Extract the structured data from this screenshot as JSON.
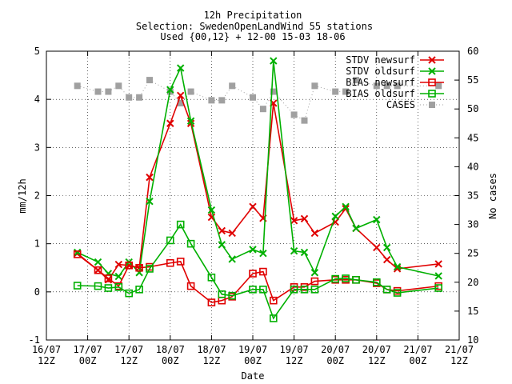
{
  "chart_data": {
    "type": "line",
    "title": "12h Precipitation",
    "subtitle": "Selection: SwedenOpenLandWind     55 stations",
    "subtitle2": "Used {00,12} + 12-00 15-03 18-06",
    "xlabel": "Date",
    "ylabel": "mm/12h",
    "y2label": "No cases",
    "xlim": [
      0,
      120
    ],
    "ylim": [
      -1,
      5
    ],
    "y2lim": [
      10,
      60
    ],
    "x_ticks": [
      {
        "x": 0,
        "label1": "16/07",
        "label2": "12Z"
      },
      {
        "x": 12,
        "label1": "17/07",
        "label2": "00Z"
      },
      {
        "x": 24,
        "label1": "17/07",
        "label2": "12Z"
      },
      {
        "x": 36,
        "label1": "18/07",
        "label2": "00Z"
      },
      {
        "x": 48,
        "label1": "18/07",
        "label2": "12Z"
      },
      {
        "x": 60,
        "label1": "19/07",
        "label2": "00Z"
      },
      {
        "x": 72,
        "label1": "19/07",
        "label2": "12Z"
      },
      {
        "x": 84,
        "label1": "20/07",
        "label2": "00Z"
      },
      {
        "x": 96,
        "label1": "20/07",
        "label2": "12Z"
      },
      {
        "x": 108,
        "label1": "21/07",
        "label2": "00Z"
      },
      {
        "x": 120,
        "label1": "21/07",
        "label2": "12Z"
      }
    ],
    "y_ticks": [
      -1,
      0,
      1,
      2,
      3,
      4,
      5
    ],
    "y2_ticks": [
      10,
      15,
      20,
      25,
      30,
      35,
      40,
      45,
      50,
      55,
      60
    ],
    "grid": true,
    "legend_position": "top-right",
    "series": [
      {
        "name": "STDV newsurf",
        "color": "#e00000",
        "marker": "cross",
        "axis": "y",
        "x": [
          9,
          15,
          18,
          21,
          24,
          27,
          30,
          36,
          39,
          42,
          48,
          51,
          54,
          60,
          63,
          66,
          72,
          75,
          78,
          84,
          87,
          90,
          96,
          99,
          102,
          114
        ],
        "y": [
          0.8,
          0.45,
          0.25,
          0.57,
          0.55,
          0.5,
          2.38,
          3.5,
          4.08,
          3.5,
          1.55,
          1.27,
          1.22,
          1.77,
          1.53,
          3.92,
          1.48,
          1.52,
          1.22,
          1.45,
          1.73,
          1.32,
          0.92,
          0.67,
          0.48,
          0.58
        ]
      },
      {
        "name": "STDV oldsurf",
        "color": "#00b000",
        "marker": "cross",
        "axis": "y",
        "x": [
          9,
          15,
          18,
          21,
          24,
          27,
          30,
          36,
          39,
          42,
          48,
          51,
          54,
          60,
          63,
          66,
          72,
          75,
          78,
          84,
          87,
          90,
          96,
          99,
          102,
          114
        ],
        "y": [
          0.82,
          0.62,
          0.38,
          0.32,
          0.62,
          0.4,
          1.88,
          4.2,
          4.65,
          3.55,
          1.7,
          0.98,
          0.68,
          0.88,
          0.8,
          4.8,
          0.85,
          0.82,
          0.4,
          1.57,
          1.77,
          1.32,
          1.5,
          0.92,
          0.52,
          0.33
        ]
      },
      {
        "name": "BIAS newsurf",
        "color": "#e00000",
        "marker": "square",
        "axis": "y",
        "x": [
          9,
          15,
          18,
          21,
          24,
          27,
          30,
          36,
          39,
          42,
          48,
          51,
          54,
          60,
          63,
          66,
          72,
          75,
          78,
          84,
          87,
          90,
          96,
          99,
          102,
          114
        ],
        "y": [
          0.78,
          0.45,
          0.28,
          0.12,
          0.55,
          0.5,
          0.52,
          0.6,
          0.63,
          0.12,
          -0.22,
          -0.18,
          -0.1,
          0.38,
          0.42,
          -0.18,
          0.1,
          0.1,
          0.22,
          0.25,
          0.25,
          0.25,
          0.18,
          0.05,
          0.02,
          0.12
        ]
      },
      {
        "name": "BIAS oldsurf",
        "color": "#00b000",
        "marker": "square",
        "axis": "y",
        "x": [
          9,
          15,
          18,
          21,
          24,
          27,
          30,
          36,
          39,
          42,
          48,
          51,
          54,
          60,
          63,
          66,
          72,
          75,
          78,
          84,
          87,
          90,
          96,
          99,
          102,
          114
        ],
        "y": [
          0.13,
          0.12,
          0.08,
          0.1,
          -0.03,
          0.05,
          0.48,
          1.07,
          1.4,
          1.0,
          0.3,
          -0.05,
          -0.08,
          0.05,
          0.05,
          -0.55,
          0.05,
          0.05,
          0.05,
          0.27,
          0.28,
          0.25,
          0.2,
          0.05,
          -0.02,
          0.08
        ]
      },
      {
        "name": "CASES",
        "color": "#a0a0a0",
        "marker": "square",
        "axis": "y2",
        "x": [
          9,
          15,
          18,
          21,
          24,
          27,
          30,
          36,
          39,
          42,
          48,
          51,
          54,
          60,
          63,
          66,
          72,
          75,
          78,
          84,
          87,
          90,
          96,
          99,
          102,
          114
        ],
        "y": [
          54,
          53,
          53,
          54,
          52,
          52,
          55,
          53,
          51,
          53,
          51.5,
          51.5,
          54,
          52,
          50,
          53,
          49,
          48,
          54,
          53,
          53,
          55,
          54,
          54,
          54,
          54
        ]
      }
    ]
  }
}
